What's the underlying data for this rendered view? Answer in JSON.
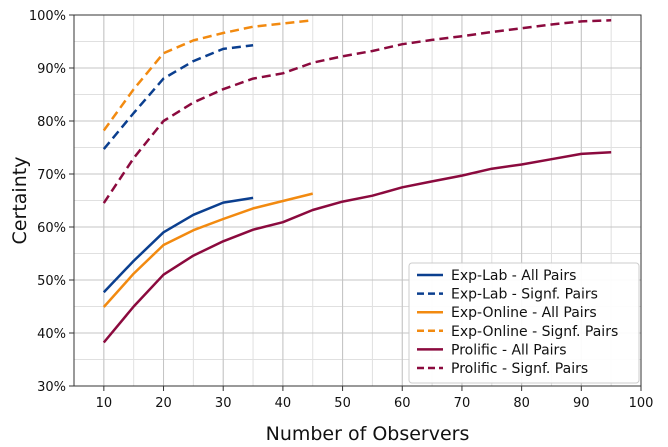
{
  "chart_data": {
    "type": "line",
    "xlabel": "Number of Observers",
    "ylabel": "Certainty",
    "xlim": [
      5,
      100
    ],
    "ylim": [
      30,
      100
    ],
    "x_ticks": [
      10,
      20,
      30,
      40,
      50,
      60,
      70,
      80,
      90,
      100
    ],
    "y_ticks": [
      30,
      40,
      50,
      60,
      70,
      80,
      90,
      100
    ],
    "y_tick_labels": [
      "30%",
      "40%",
      "50%",
      "60%",
      "70%",
      "80%",
      "90%",
      "100%"
    ],
    "grid": true,
    "legend_position": "bottom-right",
    "series": [
      {
        "name": "Exp-Lab - All Pairs",
        "color": "#0b3f8f",
        "dash": "solid",
        "x": [
          10,
          15,
          20,
          25,
          30,
          35
        ],
        "y": [
          47.7,
          53.6,
          59.0,
          62.3,
          64.6,
          65.5
        ]
      },
      {
        "name": "Exp-Lab - Signf. Pairs",
        "color": "#0b3f8f",
        "dash": "dashed",
        "x": [
          10,
          15,
          20,
          25,
          30,
          35
        ],
        "y": [
          74.7,
          81.5,
          88.0,
          91.3,
          93.6,
          94.3
        ]
      },
      {
        "name": "Exp-Online - All Pairs",
        "color": "#f28a10",
        "dash": "solid",
        "x": [
          10,
          15,
          20,
          25,
          30,
          35,
          40,
          45
        ],
        "y": [
          44.9,
          51.2,
          56.6,
          59.4,
          61.5,
          63.5,
          64.9,
          66.3
        ]
      },
      {
        "name": "Exp-Online - Signf. Pairs",
        "color": "#f28a10",
        "dash": "dashed",
        "x": [
          10,
          15,
          20,
          25,
          30,
          35,
          40,
          45
        ],
        "y": [
          78.2,
          86.0,
          92.8,
          95.2,
          96.6,
          97.8,
          98.4,
          99.0
        ]
      },
      {
        "name": "Prolific - All Pairs",
        "color": "#8b0a3e",
        "dash": "solid",
        "x": [
          10,
          15,
          20,
          25,
          30,
          35,
          40,
          45,
          50,
          55,
          60,
          65,
          70,
          75,
          80,
          85,
          90,
          95
        ],
        "y": [
          38.2,
          45.0,
          51.0,
          54.6,
          57.3,
          59.5,
          60.9,
          63.2,
          64.8,
          65.9,
          67.5,
          68.6,
          69.7,
          71.0,
          71.8,
          72.8,
          73.8,
          74.1
        ]
      },
      {
        "name": "Prolific - Signf. Pairs",
        "color": "#8b0a3e",
        "dash": "dashed",
        "x": [
          10,
          15,
          20,
          25,
          30,
          35,
          40,
          45,
          50,
          55,
          60,
          65,
          70,
          75,
          80,
          85,
          90,
          95
        ],
        "y": [
          64.5,
          73.0,
          80.0,
          83.5,
          86.0,
          88.0,
          89.0,
          91.0,
          92.2,
          93.2,
          94.5,
          95.3,
          96.0,
          96.8,
          97.5,
          98.2,
          98.8,
          99.0
        ]
      }
    ]
  }
}
